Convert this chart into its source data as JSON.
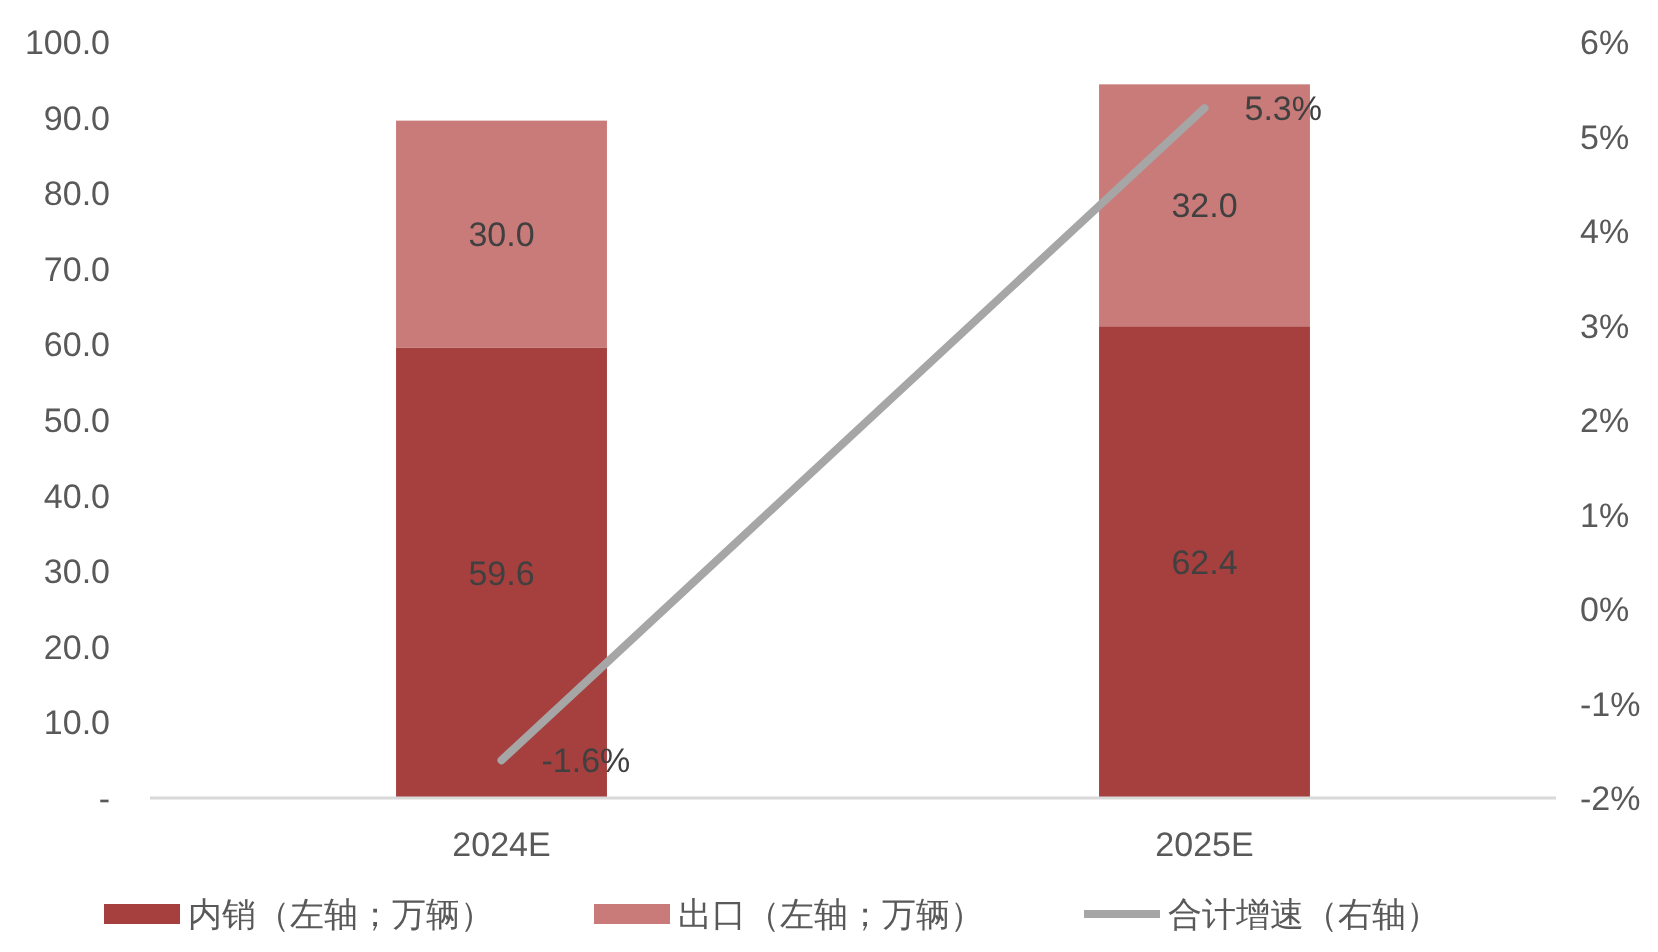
{
  "chart_data": {
    "type": "bar",
    "stacked": true,
    "categories": [
      "2024E",
      "2025E"
    ],
    "series": [
      {
        "name": "内销（左轴；万辆）",
        "color": "#a5403e",
        "values": [
          59.6,
          62.4
        ],
        "value_labels": [
          "59.6",
          "62.4"
        ]
      },
      {
        "name": "出口（左轴；万辆）",
        "color": "#c97b79",
        "values": [
          30.0,
          32.0
        ],
        "value_labels": [
          "30.0",
          "32.0"
        ]
      },
      {
        "name": "合计增速（右轴）",
        "type": "line",
        "axis": "y2",
        "color": "#a6a6a6",
        "values": [
          -1.6,
          5.3
        ],
        "value_labels": [
          "-1.6%",
          "5.3%"
        ],
        "marker": "none"
      }
    ],
    "ylim": [
      0,
      100
    ],
    "yticks": [
      {
        "value": 0,
        "label": "-"
      },
      {
        "value": 10,
        "label": "10.0"
      },
      {
        "value": 20,
        "label": "20.0"
      },
      {
        "value": 30,
        "label": "30.0"
      },
      {
        "value": 40,
        "label": "40.0"
      },
      {
        "value": 50,
        "label": "50.0"
      },
      {
        "value": 60,
        "label": "60.0"
      },
      {
        "value": 70,
        "label": "70.0"
      },
      {
        "value": 80,
        "label": "80.0"
      },
      {
        "value": 90,
        "label": "90.0"
      },
      {
        "value": 100,
        "label": "100.0"
      }
    ],
    "y2lim": [
      -2,
      6
    ],
    "y2ticks": [
      {
        "value": -2,
        "label": "-2%"
      },
      {
        "value": -1,
        "label": "-1%"
      },
      {
        "value": 0,
        "label": "0%"
      },
      {
        "value": 1,
        "label": "1%"
      },
      {
        "value": 2,
        "label": "2%"
      },
      {
        "value": 3,
        "label": "3%"
      },
      {
        "value": 4,
        "label": "4%"
      },
      {
        "value": 5,
        "label": "5%"
      },
      {
        "value": 6,
        "label": "6%"
      }
    ],
    "grid": false,
    "legend": "bottom"
  }
}
